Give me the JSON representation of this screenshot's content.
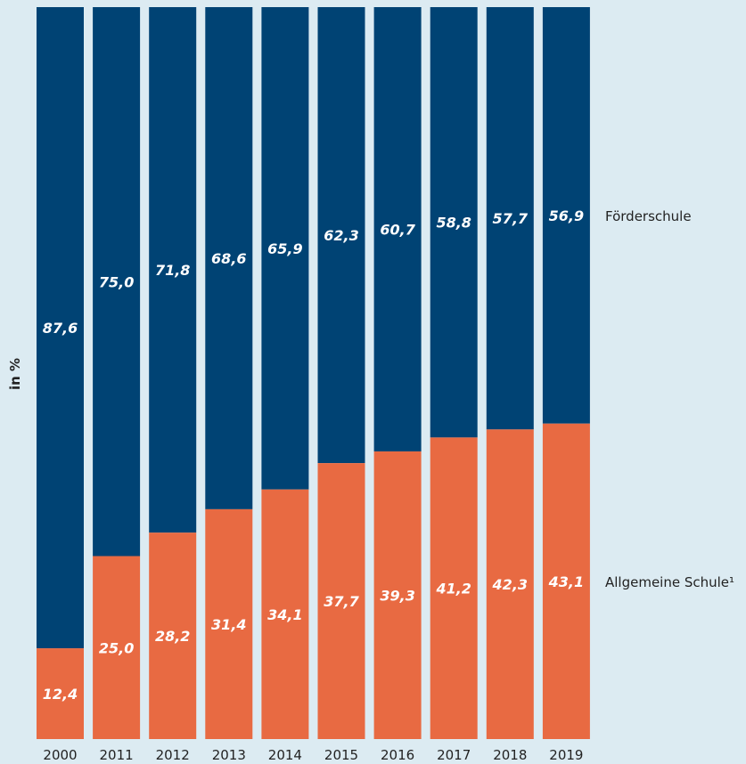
{
  "chart_data": {
    "type": "bar",
    "stacked": true,
    "ylabel": "in %",
    "ylim": [
      0,
      100
    ],
    "grid": false,
    "legend_placement": "right",
    "categories": [
      "2000",
      "2011",
      "2012",
      "2013",
      "2014",
      "2015",
      "2016",
      "2017",
      "2018",
      "2019"
    ],
    "series": [
      {
        "name": "Allgemeine Schule¹",
        "color": "#e86a42",
        "values": [
          12.4,
          25.0,
          28.2,
          31.4,
          34.1,
          37.7,
          39.3,
          41.2,
          42.3,
          43.1
        ],
        "labels": [
          "12,4",
          "25,0",
          "28,2",
          "31,4",
          "34,1",
          "37,7",
          "39,3",
          "41,2",
          "42,3",
          "43,1"
        ]
      },
      {
        "name": "Förderschule",
        "color": "#004374",
        "values": [
          87.6,
          75.0,
          71.8,
          68.6,
          65.9,
          62.3,
          60.7,
          58.8,
          57.7,
          56.9
        ],
        "labels": [
          "87,6",
          "75,0",
          "71,8",
          "68,6",
          "65,9",
          "62,3",
          "60,7",
          "58,8",
          "57,7",
          "56,9"
        ]
      }
    ]
  }
}
